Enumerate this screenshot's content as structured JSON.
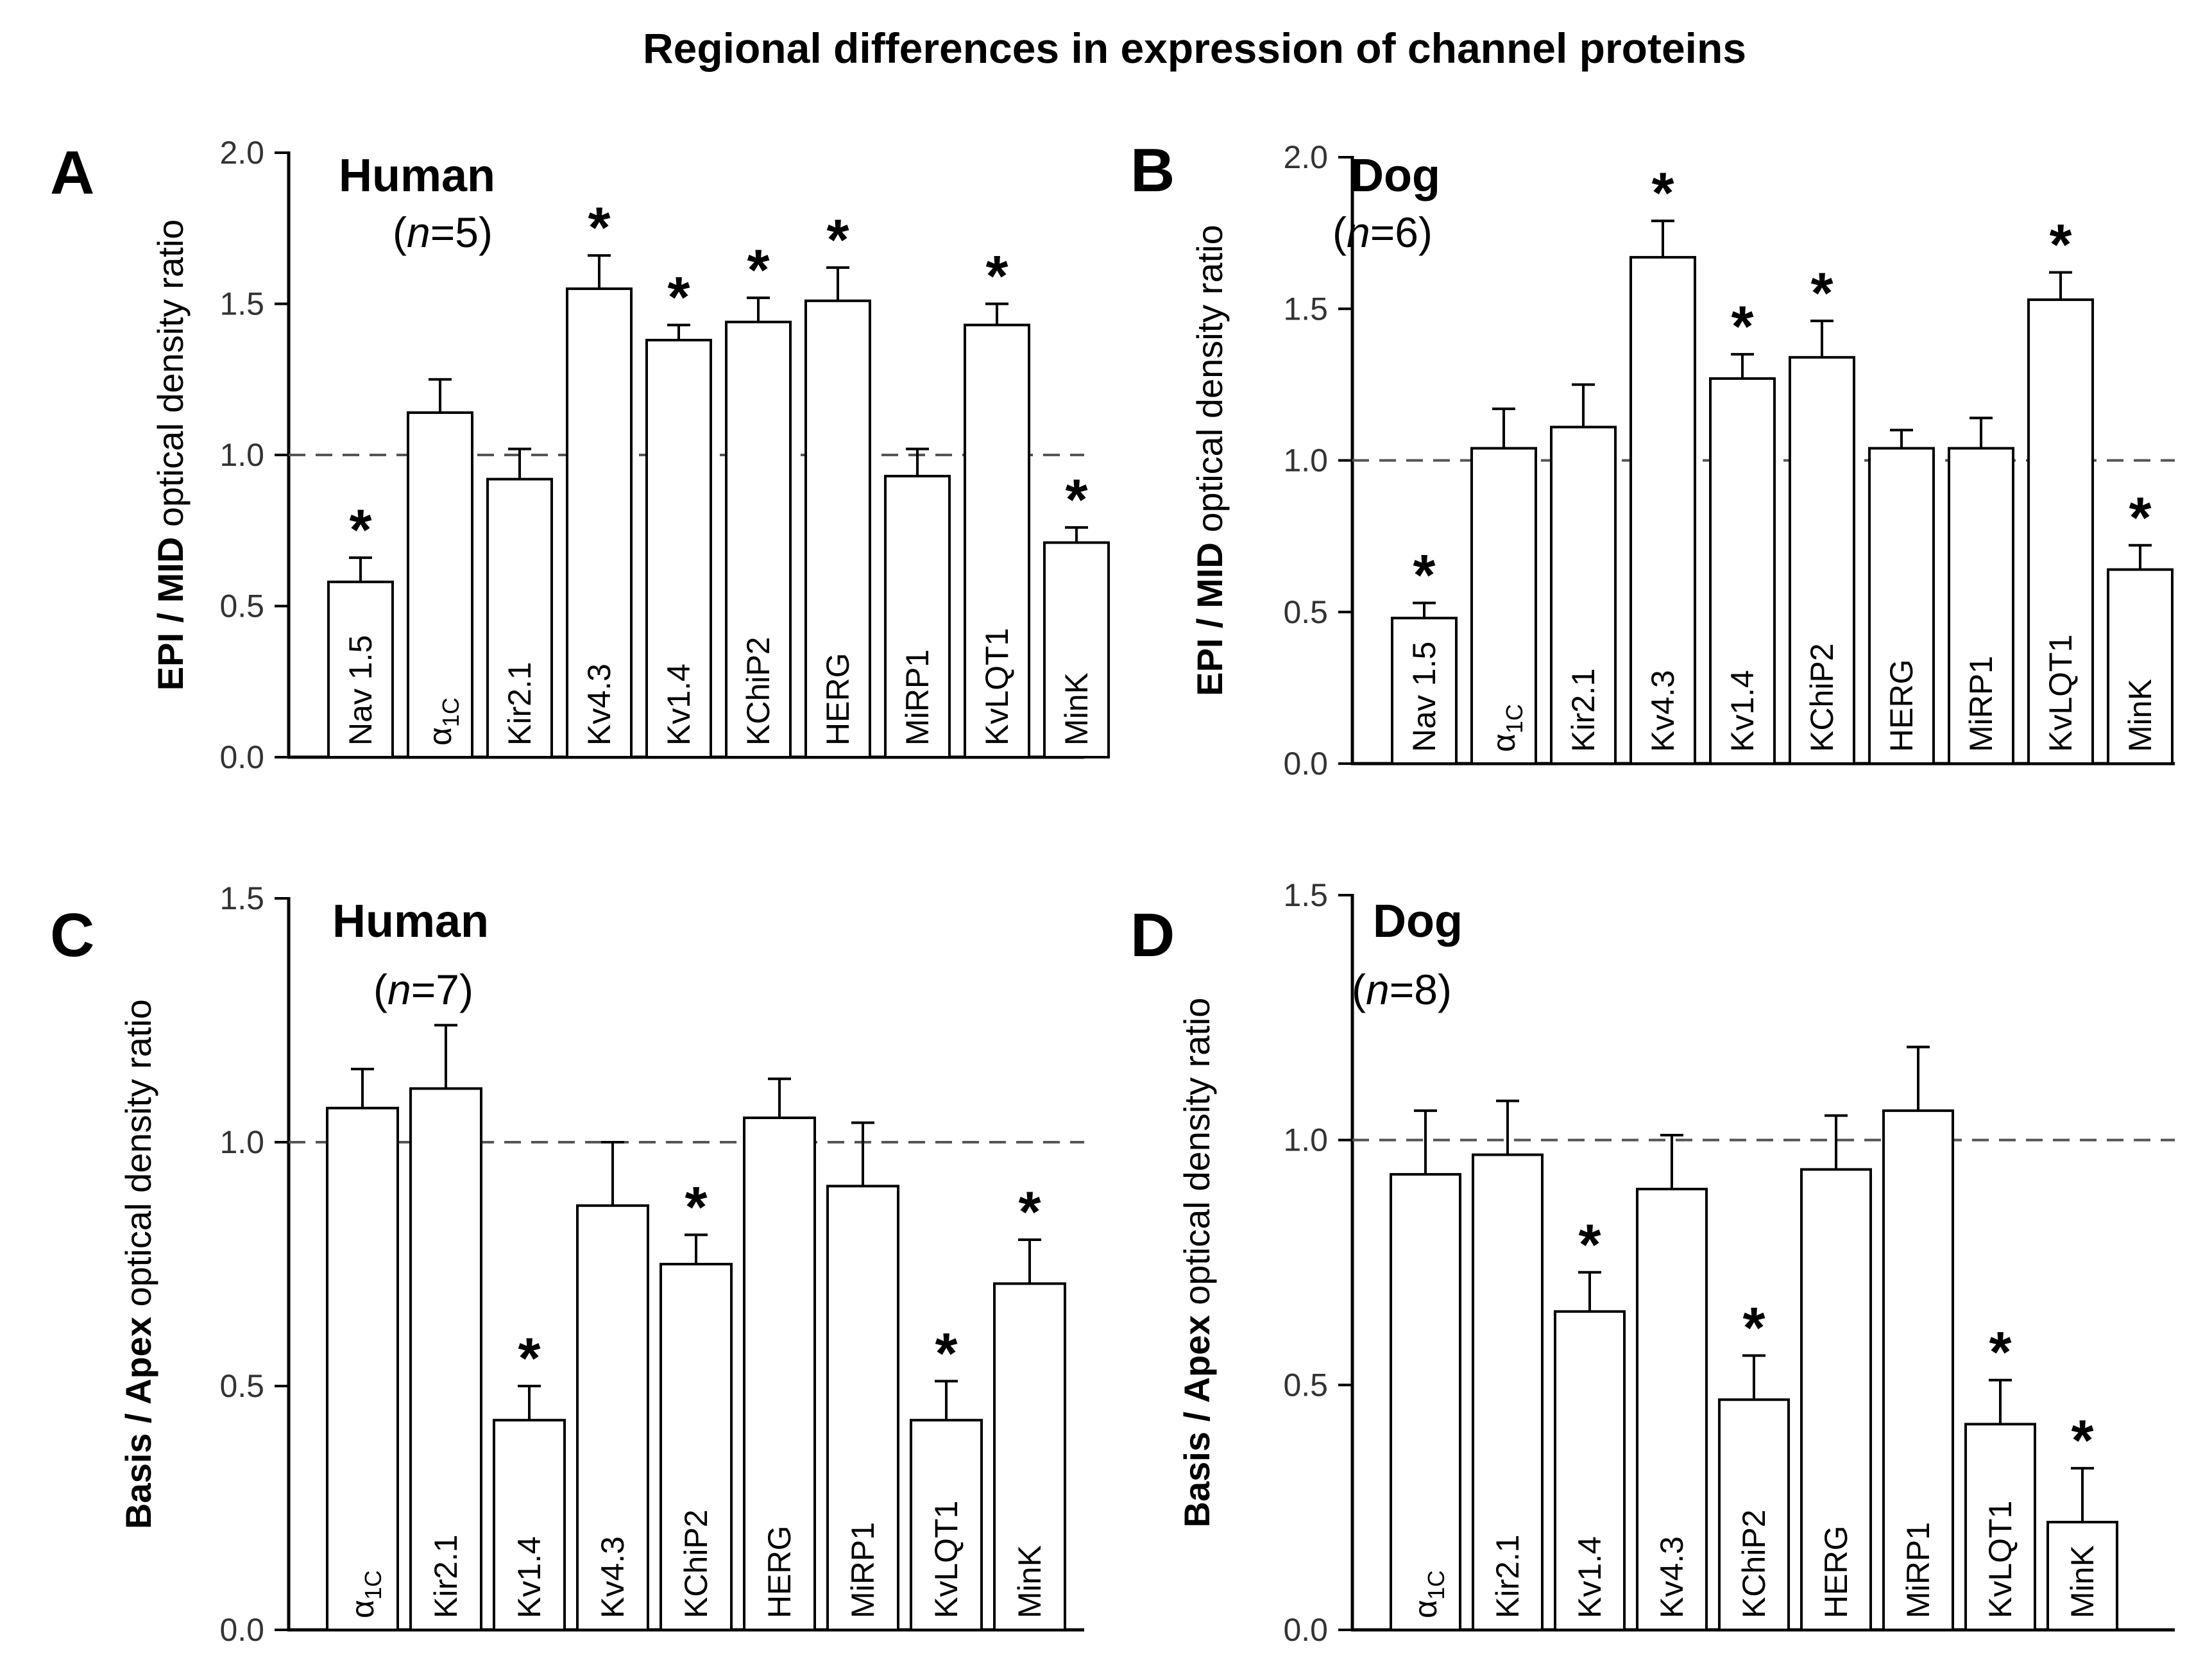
{
  "figure_title": "Regional differences in expression of channel proteins",
  "chart_data": [
    {
      "type": "bar",
      "panel": "A",
      "species": "Human",
      "n_label": "n",
      "n_value": "=5",
      "ylabel_bold": "EPI / MID",
      "ylabel_rest": " optical density ratio",
      "ylim": [
        0,
        2.0
      ],
      "yticks": [
        "0.0",
        "0.5",
        "1.0",
        "1.5",
        "2.0"
      ],
      "reference_line": 1.0,
      "categories": [
        "Nav 1.5",
        "α1C",
        "Kir2.1",
        "Kv4.3",
        "Kv1.4",
        "KChiP2",
        "HERG",
        "MiRP1",
        "KvLQT1",
        "MinK"
      ],
      "values": [
        0.58,
        1.14,
        0.92,
        1.55,
        1.38,
        1.44,
        1.51,
        0.93,
        1.43,
        0.71
      ],
      "errors": [
        0.08,
        0.11,
        0.1,
        0.11,
        0.05,
        0.08,
        0.11,
        0.09,
        0.07,
        0.05
      ],
      "significant": [
        true,
        false,
        false,
        true,
        true,
        true,
        true,
        false,
        true,
        true
      ]
    },
    {
      "type": "bar",
      "panel": "B",
      "species": "Dog",
      "n_label": "n",
      "n_value": "=6",
      "ylabel_bold": "EPI / MID",
      "ylabel_rest": " optical density ratio",
      "ylim": [
        0,
        2.0
      ],
      "yticks": [
        "0.0",
        "0.5",
        "1.0",
        "1.5",
        "2.0"
      ],
      "reference_line": 1.0,
      "categories": [
        "Nav 1.5",
        "α1C",
        "Kir2.1",
        "Kv4.3",
        "Kv1.4",
        "KChiP2",
        "HERG",
        "MiRP1",
        "KvLQT1",
        "MinK"
      ],
      "values": [
        0.48,
        1.04,
        1.11,
        1.67,
        1.27,
        1.34,
        1.04,
        1.04,
        1.53,
        0.64
      ],
      "errors": [
        0.05,
        0.13,
        0.14,
        0.12,
        0.08,
        0.12,
        0.06,
        0.1,
        0.09,
        0.08
      ],
      "significant": [
        true,
        false,
        false,
        true,
        true,
        true,
        false,
        false,
        true,
        true
      ]
    },
    {
      "type": "bar",
      "panel": "C",
      "species": "Human",
      "n_label": "n",
      "n_value": "=7",
      "ylabel_bold": "Basis / Apex",
      "ylabel_rest": " optical density ratio",
      "ylim": [
        0,
        1.5
      ],
      "yticks": [
        "0.0",
        "0.5",
        "1.0",
        "1.5"
      ],
      "reference_line": 1.0,
      "categories": [
        "α1C",
        "Kir2.1",
        "Kv1.4",
        "Kv4.3",
        "KChiP2",
        "HERG",
        "MiRP1",
        "KvLQT1",
        "MinK"
      ],
      "values": [
        1.07,
        1.11,
        0.43,
        0.87,
        0.75,
        1.05,
        0.91,
        0.43,
        0.71
      ],
      "errors": [
        0.08,
        0.13,
        0.07,
        0.13,
        0.06,
        0.08,
        0.13,
        0.08,
        0.09
      ],
      "significant": [
        false,
        false,
        true,
        false,
        true,
        false,
        false,
        true,
        true
      ]
    },
    {
      "type": "bar",
      "panel": "D",
      "species": "Dog",
      "n_label": "n",
      "n_value": "=8",
      "ylabel_bold": "Basis / Apex",
      "ylabel_rest": " optical density ratio",
      "ylim": [
        0,
        1.5
      ],
      "yticks": [
        "0.0",
        "0.5",
        "1.0",
        "1.5"
      ],
      "reference_line": 1.0,
      "categories": [
        "α1C",
        "Kir2.1",
        "Kv1.4",
        "Kv4.3",
        "KChiP2",
        "HERG",
        "MiRP1",
        "KvLQT1",
        "MinK"
      ],
      "values": [
        0.93,
        0.97,
        0.65,
        0.9,
        0.47,
        0.94,
        1.06,
        0.42,
        0.22
      ],
      "errors": [
        0.13,
        0.11,
        0.08,
        0.11,
        0.09,
        0.11,
        0.13,
        0.09,
        0.11
      ],
      "significant": [
        false,
        false,
        true,
        false,
        true,
        false,
        false,
        true,
        true
      ]
    }
  ]
}
